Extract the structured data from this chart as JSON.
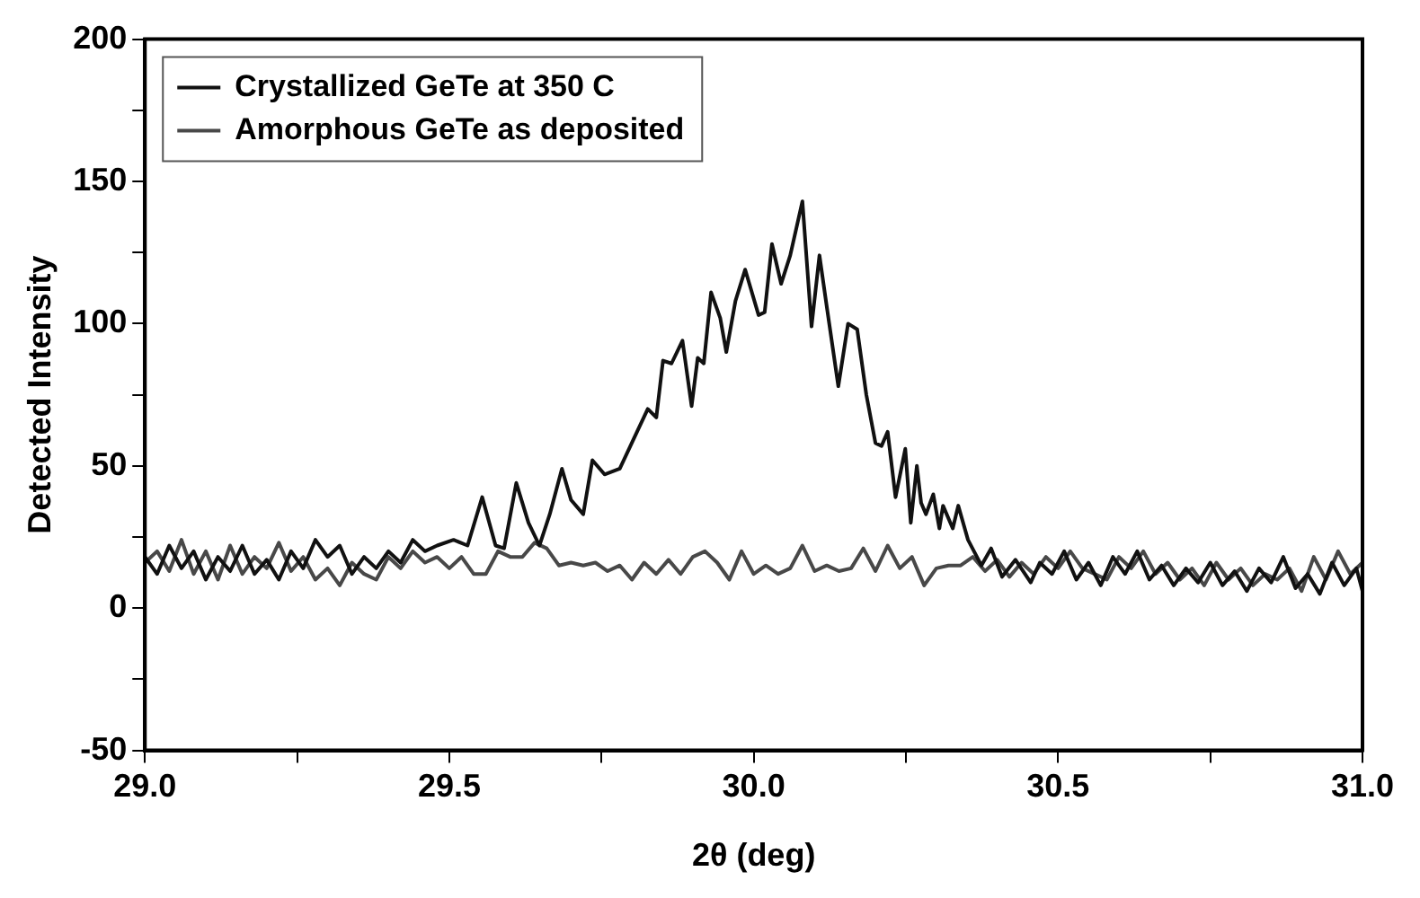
{
  "chart_data": {
    "type": "line",
    "xlabel": "2θ (deg)",
    "ylabel": "Detected Intensity",
    "xlim": [
      29.0,
      31.0
    ],
    "xticks": [
      {
        "value": 29.0,
        "label": "29.0"
      },
      {
        "value": 29.25,
        "label": null
      },
      {
        "value": 29.5,
        "label": "29.5"
      },
      {
        "value": 29.75,
        "label": null
      },
      {
        "value": 30.0,
        "label": "30.0"
      },
      {
        "value": 30.25,
        "label": null
      },
      {
        "value": 30.5,
        "label": "30.5"
      },
      {
        "value": 30.75,
        "label": null
      },
      {
        "value": 31.0,
        "label": "31.0"
      }
    ],
    "ylim": [
      -50,
      200
    ],
    "yticks": [
      -50,
      {
        "value": -25,
        "label": null
      },
      0,
      {
        "value": 25,
        "label": null
      },
      50,
      {
        "value": 75,
        "label": null
      },
      100,
      {
        "value": 125,
        "label": null
      },
      150,
      {
        "value": 175,
        "label": null
      },
      200
    ],
    "grid": false,
    "legend": "top left",
    "marker": "none",
    "line_style": "solid",
    "series": [
      {
        "name": "Crystallized GeTe at 350 C",
        "color": "#111111",
        "x": [
          29.0,
          29.02,
          29.04,
          29.06,
          29.08,
          29.1,
          29.12,
          29.14,
          29.16,
          29.18,
          29.2,
          29.22,
          29.24,
          29.26,
          29.28,
          29.3,
          29.32,
          29.34,
          29.36,
          29.38,
          29.4,
          29.42,
          29.44,
          29.46,
          29.48,
          29.507,
          29.53,
          29.554,
          29.576,
          29.59,
          29.61,
          29.63,
          29.648,
          29.665,
          29.685,
          29.7,
          29.72,
          29.735,
          29.755,
          29.78,
          29.804,
          29.826,
          29.84,
          29.851,
          29.865,
          29.883,
          29.898,
          29.908,
          29.918,
          29.93,
          29.945,
          29.955,
          29.97,
          29.986,
          30.008,
          30.018,
          30.03,
          30.045,
          30.06,
          30.08,
          30.095,
          30.108,
          30.12,
          30.139,
          30.155,
          30.17,
          30.185,
          30.2,
          30.21,
          30.22,
          30.233,
          30.249,
          30.258,
          30.268,
          30.275,
          30.283,
          30.295,
          30.305,
          30.311,
          30.327,
          30.336,
          30.352,
          30.374,
          30.39,
          30.408,
          30.43,
          30.455,
          30.47,
          30.49,
          30.51,
          30.53,
          30.55,
          30.57,
          30.59,
          30.61,
          30.63,
          30.65,
          30.67,
          30.69,
          30.71,
          30.73,
          30.75,
          30.77,
          30.79,
          30.81,
          30.83,
          30.85,
          30.87,
          30.89,
          30.91,
          30.93,
          30.95,
          30.97,
          30.99,
          31.0
        ],
        "values": [
          18,
          12,
          22,
          14,
          20,
          10,
          18,
          13,
          22,
          12,
          17,
          10,
          20,
          14,
          24,
          18,
          22,
          12,
          18,
          14,
          20,
          16,
          24,
          20,
          22,
          24,
          22,
          39,
          22,
          21,
          44,
          30,
          22,
          33,
          49,
          38,
          33,
          52,
          47,
          49,
          60,
          70,
          67,
          87,
          86,
          94,
          71,
          88,
          86,
          111,
          102,
          90,
          108,
          119,
          103,
          104,
          128,
          114,
          124,
          143,
          99,
          124,
          106,
          78,
          100,
          98,
          75,
          58,
          57,
          62,
          39,
          56,
          30,
          50,
          37,
          33,
          40,
          28,
          36,
          28,
          36,
          24,
          15,
          21,
          11,
          17,
          9,
          16,
          12,
          20,
          10,
          16,
          8,
          18,
          12,
          20,
          10,
          15,
          8,
          14,
          9,
          16,
          8,
          13,
          6,
          14,
          9,
          18,
          7,
          12,
          5,
          16,
          8,
          14,
          6
        ]
      },
      {
        "name": "Amorphous GeTe as deposited",
        "color": "#484848",
        "x": [
          29.0,
          29.02,
          29.04,
          29.06,
          29.08,
          29.1,
          29.12,
          29.14,
          29.16,
          29.18,
          29.2,
          29.22,
          29.24,
          29.26,
          29.28,
          29.3,
          29.32,
          29.34,
          29.36,
          29.38,
          29.4,
          29.42,
          29.44,
          29.46,
          29.48,
          29.5,
          29.52,
          29.54,
          29.56,
          29.58,
          29.6,
          29.62,
          29.64,
          29.66,
          29.68,
          29.7,
          29.72,
          29.74,
          29.76,
          29.78,
          29.8,
          29.82,
          29.84,
          29.86,
          29.88,
          29.9,
          29.92,
          29.94,
          29.96,
          29.98,
          30.0,
          30.02,
          30.04,
          30.06,
          30.08,
          30.1,
          30.12,
          30.14,
          30.16,
          30.18,
          30.2,
          30.22,
          30.24,
          30.26,
          30.28,
          30.3,
          30.32,
          30.34,
          30.36,
          30.38,
          30.4,
          30.42,
          30.44,
          30.46,
          30.48,
          30.5,
          30.52,
          30.54,
          30.56,
          30.58,
          30.6,
          30.62,
          30.64,
          30.66,
          30.68,
          30.7,
          30.72,
          30.74,
          30.76,
          30.78,
          30.8,
          30.82,
          30.84,
          30.86,
          30.88,
          30.9,
          30.92,
          30.94,
          30.96,
          30.98,
          31.0
        ],
        "values": [
          16,
          20,
          13,
          24,
          12,
          20,
          10,
          22,
          12,
          18,
          14,
          23,
          13,
          18,
          10,
          14,
          8,
          16,
          12,
          10,
          18,
          14,
          20,
          16,
          18,
          14,
          18,
          12,
          12,
          20,
          18,
          18,
          23,
          21,
          15,
          16,
          15,
          16,
          13,
          15,
          10,
          16,
          12,
          17,
          12,
          18,
          20,
          16,
          10,
          20,
          12,
          15,
          12,
          14,
          22,
          13,
          15,
          13,
          14,
          21,
          13,
          22,
          14,
          18,
          8,
          14,
          15,
          15,
          18,
          13,
          17,
          11,
          16,
          12,
          18,
          14,
          20,
          14,
          12,
          10,
          18,
          14,
          20,
          12,
          16,
          10,
          14,
          8,
          16,
          10,
          14,
          8,
          12,
          10,
          14,
          6,
          18,
          10,
          20,
          12,
          16
        ]
      }
    ]
  }
}
